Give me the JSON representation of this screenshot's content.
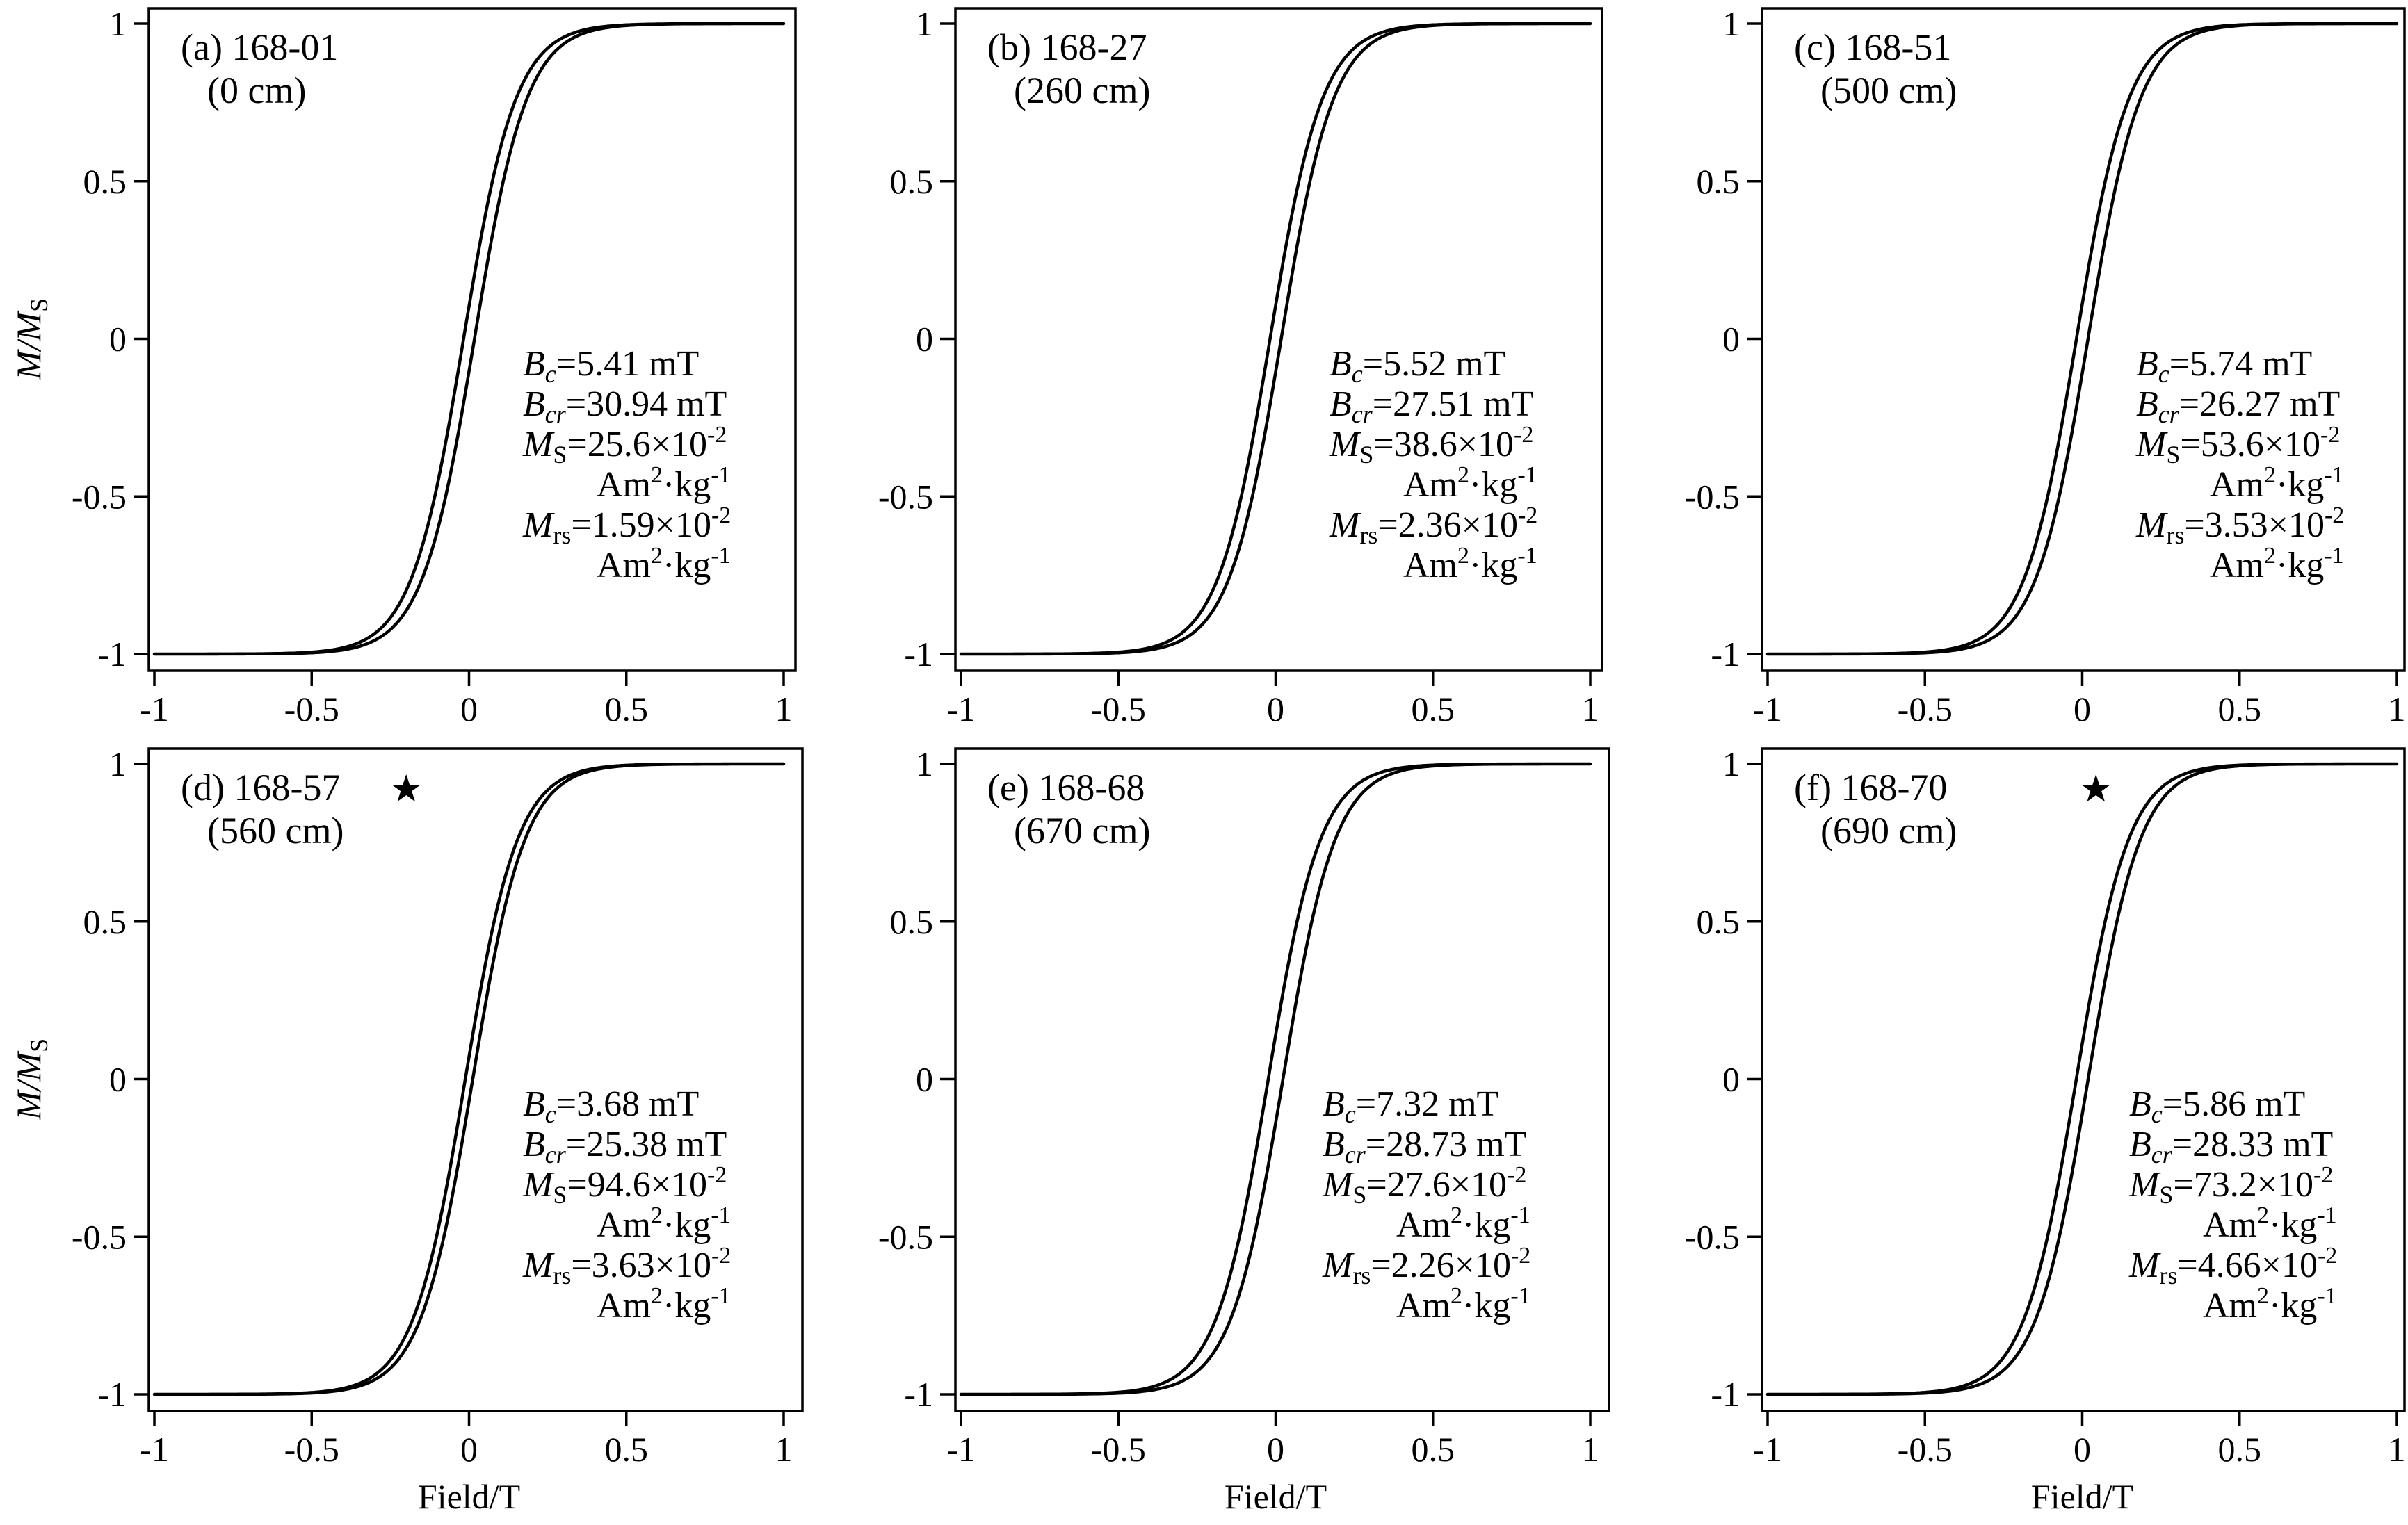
{
  "figure": {
    "x_axis_title": "Field/T",
    "y_axis_title": "M/M",
    "y_axis_title_sub": "S",
    "star_symbol": "★",
    "curve_color": "#000000"
  },
  "chart_data": [
    {
      "type": "line",
      "panel_label": "(a) 168-01",
      "depth_label": "(0 cm)",
      "starred": false,
      "xlim": [
        -1,
        1
      ],
      "ylim": [
        -1,
        1
      ],
      "xticks": [
        -1,
        -0.5,
        0,
        0.5,
        1
      ],
      "yticks": [
        -1,
        -0.5,
        0,
        0.5,
        1
      ],
      "xtick_labels": [
        "-1",
        "-0.5",
        "0",
        "0.5",
        "1"
      ],
      "ytick_labels": [
        "-1",
        "-0.5",
        "0",
        "0.5",
        "1"
      ],
      "params": {
        "Bc": "5.41",
        "Bcr": "30.94",
        "Ms": "25.6",
        "Mrs": "1.59"
      },
      "series": [
        {
          "type": "hysteresis_loop",
          "Bc_T": 0.00541,
          "Mrs_over_Ms": 0.062
        }
      ]
    },
    {
      "type": "line",
      "panel_label": "(b) 168-27",
      "depth_label": "(260 cm)",
      "starred": false,
      "xlim": [
        -1,
        1
      ],
      "ylim": [
        -1,
        1
      ],
      "xticks": [
        -1,
        -0.5,
        0,
        0.5,
        1
      ],
      "yticks": [
        -1,
        -0.5,
        0,
        0.5,
        1
      ],
      "xtick_labels": [
        "-1",
        "-0.5",
        "0",
        "0.5",
        "1"
      ],
      "ytick_labels": [
        "-1",
        "-0.5",
        "0",
        "0.5",
        "1"
      ],
      "params": {
        "Bc": "5.52",
        "Bcr": "27.51",
        "Ms": "38.6",
        "Mrs": "2.36"
      },
      "series": [
        {
          "type": "hysteresis_loop",
          "Bc_T": 0.00552,
          "Mrs_over_Ms": 0.061
        }
      ]
    },
    {
      "type": "line",
      "panel_label": "(c) 168-51",
      "depth_label": "(500 cm)",
      "starred": false,
      "xlim": [
        -1,
        1
      ],
      "ylim": [
        -1,
        1
      ],
      "xticks": [
        -1,
        -0.5,
        0,
        0.5,
        1
      ],
      "yticks": [
        -1,
        -0.5,
        0,
        0.5,
        1
      ],
      "xtick_labels": [
        "-1",
        "-0.5",
        "0",
        "0.5",
        "1"
      ],
      "ytick_labels": [
        "-1",
        "-0.5",
        "0",
        "0.5",
        "1"
      ],
      "params": {
        "Bc": "5.74",
        "Bcr": "26.27",
        "Ms": "53.6",
        "Mrs": "3.53"
      },
      "series": [
        {
          "type": "hysteresis_loop",
          "Bc_T": 0.00574,
          "Mrs_over_Ms": 0.066
        }
      ]
    },
    {
      "type": "line",
      "panel_label": "(d) 168-57",
      "depth_label": "(560 cm)",
      "starred": true,
      "xlim": [
        -1,
        1
      ],
      "ylim": [
        -1,
        1
      ],
      "xticks": [
        -1,
        -0.5,
        0,
        0.5,
        1
      ],
      "yticks": [
        -1,
        -0.5,
        0,
        0.5,
        1
      ],
      "xtick_labels": [
        "-1",
        "-0.5",
        "0",
        "0.5",
        "1"
      ],
      "ytick_labels": [
        "-1",
        "-0.5",
        "0",
        "0.5",
        "1"
      ],
      "params": {
        "Bc": "3.68",
        "Bcr": "25.38",
        "Ms": "94.6",
        "Mrs": "3.63"
      },
      "series": [
        {
          "type": "hysteresis_loop",
          "Bc_T": 0.00368,
          "Mrs_over_Ms": 0.038
        }
      ]
    },
    {
      "type": "line",
      "panel_label": "(e) 168-68",
      "depth_label": "(670 cm)",
      "starred": false,
      "xlim": [
        -1,
        1
      ],
      "ylim": [
        -1,
        1
      ],
      "xticks": [
        -1,
        -0.5,
        0,
        0.5,
        1
      ],
      "yticks": [
        -1,
        -0.5,
        0,
        0.5,
        1
      ],
      "xtick_labels": [
        "-1",
        "-0.5",
        "0",
        "0.5",
        "1"
      ],
      "ytick_labels": [
        "-1",
        "-0.5",
        "0",
        "0.5",
        "1"
      ],
      "params": {
        "Bc": "7.32",
        "Bcr": "28.73",
        "Ms": "27.6",
        "Mrs": "2.26"
      },
      "series": [
        {
          "type": "hysteresis_loop",
          "Bc_T": 0.00732,
          "Mrs_over_Ms": 0.082
        }
      ]
    },
    {
      "type": "line",
      "panel_label": "(f) 168-70",
      "depth_label": "(690 cm)",
      "starred": true,
      "xlim": [
        -1,
        1
      ],
      "ylim": [
        -1,
        1
      ],
      "xticks": [
        -1,
        -0.5,
        0,
        0.5,
        1
      ],
      "yticks": [
        -1,
        -0.5,
        0,
        0.5,
        1
      ],
      "xtick_labels": [
        "-1",
        "-0.5",
        "0",
        "0.5",
        "1"
      ],
      "ytick_labels": [
        "-1",
        "-0.5",
        "0",
        "0.5",
        "1"
      ],
      "params": {
        "Bc": "5.86",
        "Bcr": "28.33",
        "Ms": "73.2",
        "Mrs": "4.66"
      },
      "series": [
        {
          "type": "hysteresis_loop",
          "Bc_T": 0.00586,
          "Mrs_over_Ms": 0.064
        }
      ]
    }
  ]
}
